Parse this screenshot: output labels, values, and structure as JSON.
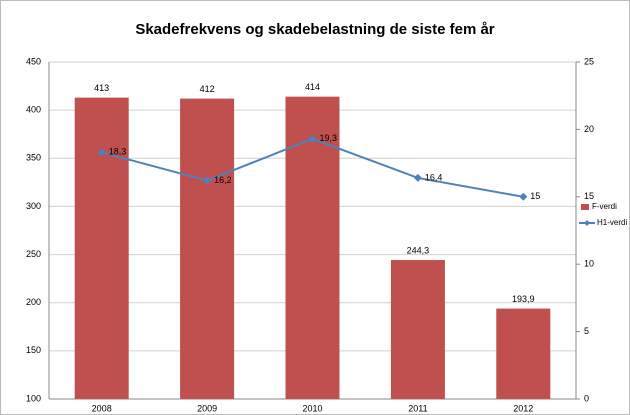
{
  "chart_data": {
    "type": "bar-line",
    "title": "Skadefrekvens og skadebelastning de siste fem år",
    "categories": [
      "2008",
      "2009",
      "2010",
      "2011",
      "2012"
    ],
    "series": [
      {
        "name": "F-verdi",
        "color": "#c0504d",
        "type": "bar",
        "values": [
          413,
          412,
          414,
          244.3,
          193.9
        ],
        "value_labels": [
          "413",
          "412",
          "414",
          "244,3",
          "193,9"
        ]
      },
      {
        "name": "H1-verdi",
        "color": "#4f81bd",
        "type": "line",
        "axis": "y2",
        "values": [
          18.3,
          16.2,
          19.3,
          16.4,
          15
        ],
        "value_labels": [
          "18,3",
          "16,2",
          "19,3",
          "16,4",
          "15"
        ]
      }
    ],
    "ylim": [
      100,
      450
    ],
    "yticks": [
      100,
      150,
      200,
      250,
      300,
      350,
      400,
      450
    ],
    "y2lim": [
      0,
      25
    ],
    "y2ticks": [
      0,
      5,
      10,
      15,
      20,
      25
    ],
    "grid": true,
    "legend": "right"
  }
}
